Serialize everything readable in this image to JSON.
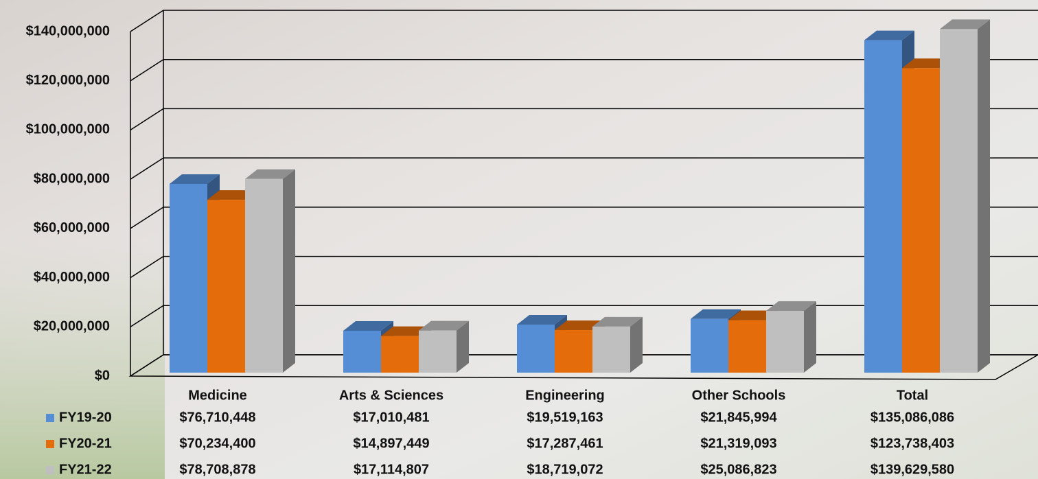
{
  "chart_data": {
    "type": "bar3d",
    "categories": [
      "Medicine",
      "Arts & Sciences",
      "Engineering",
      "Other Schools",
      "Total"
    ],
    "series": [
      {
        "name": "FY19-20",
        "color": "#558ed5",
        "values": [
          76710448,
          17010481,
          19519163,
          21845994,
          135086086
        ],
        "value_labels": [
          "$76,710,448",
          "$17,010,481",
          "$19,519,163",
          "$21,845,994",
          "$135,086,086"
        ]
      },
      {
        "name": "FY20-21",
        "color": "#e46c0a",
        "values": [
          70234400,
          14897449,
          17287461,
          21319093,
          123738403
        ],
        "value_labels": [
          "$70,234,400",
          "$14,897,449",
          "$17,287,461",
          "$21,319,093",
          "$123,738,403"
        ]
      },
      {
        "name": "FY21-22",
        "color": "#bfbfbf",
        "values": [
          78708878,
          17114807,
          18719072,
          25086823,
          139629580
        ],
        "value_labels": [
          "$78,708,878",
          "$17,114,807",
          "$18,719,072",
          "$25,086,823",
          "$139,629,580"
        ]
      }
    ],
    "ylim": [
      0,
      140000000
    ],
    "yticks": [
      {
        "value": 0,
        "label": "$0"
      },
      {
        "value": 20000000,
        "label": "$20,000,000"
      },
      {
        "value": 40000000,
        "label": "$40,000,000"
      },
      {
        "value": 60000000,
        "label": "$60,000,000"
      },
      {
        "value": 80000000,
        "label": "$80,000,000"
      },
      {
        "value": 100000000,
        "label": "$100,000,000"
      },
      {
        "value": 120000000,
        "label": "$120,000,000"
      },
      {
        "value": 140000000,
        "label": "$140,000,000"
      }
    ],
    "grid": true
  }
}
